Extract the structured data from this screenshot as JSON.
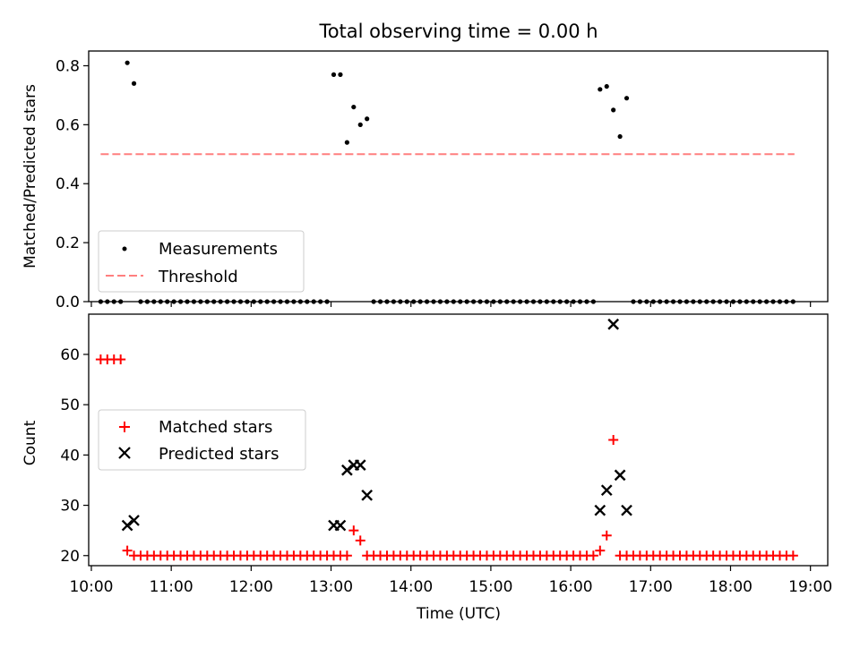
{
  "title": "Total observing time = 0.00 h",
  "colors": {
    "measurements": "#000000",
    "threshold": "#ff7f7f",
    "matched": "#ff0000",
    "predicted": "#000000",
    "axes": "#000000"
  },
  "chart_data": [
    {
      "type": "scatter",
      "ylabel": "Matched/Predicted stars",
      "xlim": [
        "09:58",
        "19:13"
      ],
      "ylim": [
        0.0,
        0.85
      ],
      "yticks": [
        "0.0",
        "0.2",
        "0.4",
        "0.6",
        "0.8"
      ],
      "grid": false,
      "legend": {
        "position": "lower left",
        "entries": [
          "Measurements",
          "Threshold"
        ]
      },
      "threshold": {
        "name": "Threshold",
        "y": 0.5,
        "x_start": "10:07",
        "x_end": "18:48"
      },
      "series": [
        {
          "name": "Measurements",
          "points": [
            [
              "10:07",
              0
            ],
            [
              "10:12",
              0
            ],
            [
              "10:17",
              0
            ],
            [
              "10:22",
              0
            ],
            [
              "10:27",
              0.81
            ],
            [
              "10:32",
              0.74
            ],
            [
              "10:37",
              0
            ],
            [
              "10:42",
              0
            ],
            [
              "10:47",
              0
            ],
            [
              "10:52",
              0
            ],
            [
              "10:57",
              0
            ],
            [
              "11:02",
              0
            ],
            [
              "11:07",
              0
            ],
            [
              "11:12",
              0
            ],
            [
              "11:17",
              0
            ],
            [
              "11:22",
              0
            ],
            [
              "11:27",
              0
            ],
            [
              "11:32",
              0
            ],
            [
              "11:37",
              0
            ],
            [
              "11:42",
              0
            ],
            [
              "11:47",
              0
            ],
            [
              "11:52",
              0
            ],
            [
              "11:57",
              0
            ],
            [
              "12:02",
              0
            ],
            [
              "12:07",
              0
            ],
            [
              "12:12",
              0
            ],
            [
              "12:17",
              0
            ],
            [
              "12:22",
              0
            ],
            [
              "12:27",
              0
            ],
            [
              "12:32",
              0
            ],
            [
              "12:37",
              0
            ],
            [
              "12:42",
              0
            ],
            [
              "12:47",
              0
            ],
            [
              "12:52",
              0
            ],
            [
              "12:57",
              0
            ],
            [
              "13:02",
              0.77
            ],
            [
              "13:07",
              0.77
            ],
            [
              "13:12",
              0.54
            ],
            [
              "13:17",
              0.66
            ],
            [
              "13:22",
              0.6
            ],
            [
              "13:27",
              0.62
            ],
            [
              "13:32",
              0
            ],
            [
              "13:37",
              0
            ],
            [
              "13:42",
              0
            ],
            [
              "13:47",
              0
            ],
            [
              "13:52",
              0
            ],
            [
              "13:57",
              0
            ],
            [
              "14:02",
              0
            ],
            [
              "14:07",
              0
            ],
            [
              "14:12",
              0
            ],
            [
              "14:17",
              0
            ],
            [
              "14:22",
              0
            ],
            [
              "14:27",
              0
            ],
            [
              "14:32",
              0
            ],
            [
              "14:37",
              0
            ],
            [
              "14:42",
              0
            ],
            [
              "14:47",
              0
            ],
            [
              "14:52",
              0
            ],
            [
              "14:57",
              0
            ],
            [
              "15:02",
              0
            ],
            [
              "15:07",
              0
            ],
            [
              "15:12",
              0
            ],
            [
              "15:17",
              0
            ],
            [
              "15:22",
              0
            ],
            [
              "15:27",
              0
            ],
            [
              "15:32",
              0
            ],
            [
              "15:37",
              0
            ],
            [
              "15:42",
              0
            ],
            [
              "15:47",
              0
            ],
            [
              "15:52",
              0
            ],
            [
              "15:57",
              0
            ],
            [
              "16:02",
              0
            ],
            [
              "16:07",
              0
            ],
            [
              "16:12",
              0
            ],
            [
              "16:17",
              0
            ],
            [
              "16:22",
              0.72
            ],
            [
              "16:27",
              0.73
            ],
            [
              "16:32",
              0.65
            ],
            [
              "16:37",
              0.56
            ],
            [
              "16:42",
              0.69
            ],
            [
              "16:47",
              0
            ],
            [
              "16:52",
              0
            ],
            [
              "16:57",
              0
            ],
            [
              "17:02",
              0
            ],
            [
              "17:07",
              0
            ],
            [
              "17:12",
              0
            ],
            [
              "17:17",
              0
            ],
            [
              "17:22",
              0
            ],
            [
              "17:27",
              0
            ],
            [
              "17:32",
              0
            ],
            [
              "17:37",
              0
            ],
            [
              "17:42",
              0
            ],
            [
              "17:47",
              0
            ],
            [
              "17:52",
              0
            ],
            [
              "17:57",
              0
            ],
            [
              "18:02",
              0
            ],
            [
              "18:07",
              0
            ],
            [
              "18:12",
              0
            ],
            [
              "18:17",
              0
            ],
            [
              "18:22",
              0
            ],
            [
              "18:27",
              0
            ],
            [
              "18:32",
              0
            ],
            [
              "18:37",
              0
            ],
            [
              "18:42",
              0
            ],
            [
              "18:47",
              0
            ]
          ]
        }
      ]
    },
    {
      "type": "scatter",
      "ylabel": "Count",
      "xlabel": "Time (UTC)",
      "xlim": [
        "09:58",
        "19:13"
      ],
      "ylim": [
        18,
        68
      ],
      "yticks": [
        "20",
        "30",
        "40",
        "50",
        "60"
      ],
      "xticks": [
        "10:00",
        "11:00",
        "12:00",
        "13:00",
        "14:00",
        "15:00",
        "16:00",
        "17:00",
        "18:00",
        "19:00"
      ],
      "grid": false,
      "legend": {
        "position": "center left",
        "entries": [
          "Matched stars",
          "Predicted stars"
        ]
      },
      "series": [
        {
          "name": "Matched stars",
          "marker": "+",
          "points": [
            [
              "10:07",
              59
            ],
            [
              "10:12",
              59
            ],
            [
              "10:17",
              59
            ],
            [
              "10:22",
              59
            ],
            [
              "10:27",
              21
            ],
            [
              "10:32",
              20
            ],
            [
              "10:37",
              20
            ],
            [
              "10:42",
              20
            ],
            [
              "10:47",
              20
            ],
            [
              "10:52",
              20
            ],
            [
              "10:57",
              20
            ],
            [
              "11:02",
              20
            ],
            [
              "11:07",
              20
            ],
            [
              "11:12",
              20
            ],
            [
              "11:17",
              20
            ],
            [
              "11:22",
              20
            ],
            [
              "11:27",
              20
            ],
            [
              "11:32",
              20
            ],
            [
              "11:37",
              20
            ],
            [
              "11:42",
              20
            ],
            [
              "11:47",
              20
            ],
            [
              "11:52",
              20
            ],
            [
              "11:57",
              20
            ],
            [
              "12:02",
              20
            ],
            [
              "12:07",
              20
            ],
            [
              "12:12",
              20
            ],
            [
              "12:17",
              20
            ],
            [
              "12:22",
              20
            ],
            [
              "12:27",
              20
            ],
            [
              "12:32",
              20
            ],
            [
              "12:37",
              20
            ],
            [
              "12:42",
              20
            ],
            [
              "12:47",
              20
            ],
            [
              "12:52",
              20
            ],
            [
              "12:57",
              20
            ],
            [
              "13:02",
              20
            ],
            [
              "13:07",
              20
            ],
            [
              "13:12",
              20
            ],
            [
              "13:17",
              25
            ],
            [
              "13:22",
              23
            ],
            [
              "13:27",
              20
            ],
            [
              "13:32",
              20
            ],
            [
              "13:37",
              20
            ],
            [
              "13:42",
              20
            ],
            [
              "13:47",
              20
            ],
            [
              "13:52",
              20
            ],
            [
              "13:57",
              20
            ],
            [
              "14:02",
              20
            ],
            [
              "14:07",
              20
            ],
            [
              "14:12",
              20
            ],
            [
              "14:17",
              20
            ],
            [
              "14:22",
              20
            ],
            [
              "14:27",
              20
            ],
            [
              "14:32",
              20
            ],
            [
              "14:37",
              20
            ],
            [
              "14:42",
              20
            ],
            [
              "14:47",
              20
            ],
            [
              "14:52",
              20
            ],
            [
              "14:57",
              20
            ],
            [
              "15:02",
              20
            ],
            [
              "15:07",
              20
            ],
            [
              "15:12",
              20
            ],
            [
              "15:17",
              20
            ],
            [
              "15:22",
              20
            ],
            [
              "15:27",
              20
            ],
            [
              "15:32",
              20
            ],
            [
              "15:37",
              20
            ],
            [
              "15:42",
              20
            ],
            [
              "15:47",
              20
            ],
            [
              "15:52",
              20
            ],
            [
              "15:57",
              20
            ],
            [
              "16:02",
              20
            ],
            [
              "16:07",
              20
            ],
            [
              "16:12",
              20
            ],
            [
              "16:17",
              20
            ],
            [
              "16:22",
              21
            ],
            [
              "16:27",
              24
            ],
            [
              "16:32",
              43
            ],
            [
              "16:37",
              20
            ],
            [
              "16:42",
              20
            ],
            [
              "16:47",
              20
            ],
            [
              "16:52",
              20
            ],
            [
              "16:57",
              20
            ],
            [
              "17:02",
              20
            ],
            [
              "17:07",
              20
            ],
            [
              "17:12",
              20
            ],
            [
              "17:17",
              20
            ],
            [
              "17:22",
              20
            ],
            [
              "17:27",
              20
            ],
            [
              "17:32",
              20
            ],
            [
              "17:37",
              20
            ],
            [
              "17:42",
              20
            ],
            [
              "17:47",
              20
            ],
            [
              "17:52",
              20
            ],
            [
              "17:57",
              20
            ],
            [
              "18:02",
              20
            ],
            [
              "18:07",
              20
            ],
            [
              "18:12",
              20
            ],
            [
              "18:17",
              20
            ],
            [
              "18:22",
              20
            ],
            [
              "18:27",
              20
            ],
            [
              "18:32",
              20
            ],
            [
              "18:37",
              20
            ],
            [
              "18:42",
              20
            ],
            [
              "18:47",
              20
            ]
          ]
        },
        {
          "name": "Predicted stars",
          "marker": "x",
          "points": [
            [
              "10:27",
              26
            ],
            [
              "10:32",
              27
            ],
            [
              "13:02",
              26
            ],
            [
              "13:07",
              26
            ],
            [
              "13:12",
              37
            ],
            [
              "13:17",
              38
            ],
            [
              "13:22",
              38
            ],
            [
              "13:27",
              32
            ],
            [
              "16:22",
              29
            ],
            [
              "16:27",
              33
            ],
            [
              "16:32",
              66
            ],
            [
              "16:37",
              36
            ],
            [
              "16:42",
              29
            ]
          ]
        }
      ]
    }
  ]
}
